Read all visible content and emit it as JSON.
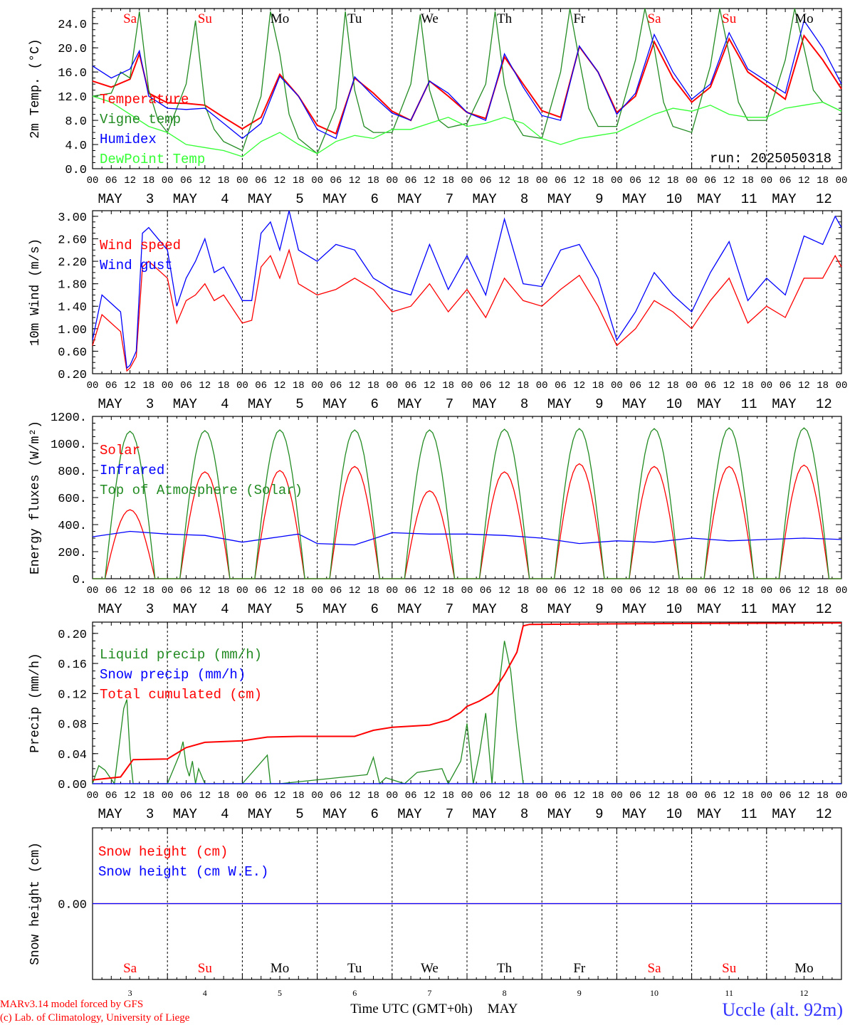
{
  "chart_data": [
    {
      "type": "line",
      "ylabel": "2m Temp. (°C)",
      "ylim": [
        0,
        26.5
      ],
      "yticks": [
        "0.0",
        "4.0",
        "8.0",
        "12.0",
        "16.0",
        "20.0",
        "24.0"
      ],
      "x_unit": "hours since 2025-05-03 00 UTC",
      "run_label": "run: 2025050318",
      "series": [
        {
          "name": "Temperature",
          "color": "#ff0000",
          "x": [
            0,
            6,
            12,
            15,
            18,
            24,
            30,
            36,
            42,
            48,
            54,
            60,
            66,
            72,
            78,
            84,
            90,
            96,
            102,
            108,
            114,
            120,
            126,
            132,
            138,
            144,
            150,
            156,
            162,
            168,
            174,
            180,
            186,
            192,
            198,
            204,
            210,
            216,
            222,
            228,
            234,
            240
          ],
          "y": [
            14.5,
            13.5,
            14.8,
            19.0,
            12.5,
            10.9,
            10.8,
            10.5,
            8.5,
            6.6,
            8.5,
            15.6,
            12.0,
            7.2,
            5.8,
            15.0,
            12.5,
            9.5,
            8.0,
            14.5,
            12.0,
            9.3,
            8.3,
            18.5,
            14.0,
            9.6,
            8.5,
            20.2,
            16.0,
            9.3,
            12.0,
            21.0,
            15.0,
            11.0,
            13.5,
            21.5,
            16.0,
            13.8,
            11.5,
            22.0,
            18.0,
            13.2
          ]
        },
        {
          "name": "Vigne temp",
          "color": "#228b22",
          "x": [
            0,
            6,
            9,
            12,
            15,
            18,
            21,
            24,
            30,
            33,
            36,
            39,
            42,
            48,
            54,
            57,
            60,
            63,
            66,
            72,
            78,
            81,
            84,
            87,
            90,
            96,
            102,
            105,
            108,
            111,
            114,
            120,
            126,
            129,
            132,
            135,
            138,
            144,
            150,
            153,
            156,
            159,
            162,
            168,
            174,
            177,
            180,
            183,
            186,
            192,
            198,
            201,
            204,
            207,
            210,
            216,
            222,
            225,
            228,
            231,
            234,
            240
          ],
          "y": [
            12.0,
            12.5,
            16.0,
            15.0,
            26.0,
            13.0,
            8.0,
            6.0,
            14.0,
            24.5,
            10.5,
            6.5,
            4.5,
            3.0,
            12.0,
            26.0,
            19.0,
            9.0,
            5.0,
            2.5,
            10.0,
            26.0,
            13.0,
            7.0,
            6.0,
            6.0,
            14.0,
            25.5,
            13.0,
            8.0,
            6.8,
            7.5,
            14.0,
            26.0,
            14.0,
            8.0,
            5.5,
            5.0,
            16.0,
            27.0,
            18.0,
            10.0,
            7.0,
            7.0,
            18.0,
            28.0,
            20.0,
            11.0,
            7.0,
            6.0,
            17.0,
            28.0,
            19.0,
            11.0,
            8.0,
            8.0,
            18.0,
            28.0,
            20.0,
            13.0,
            11.0,
            9.5
          ]
        },
        {
          "name": "Humidex",
          "color": "#0000ff",
          "x": [
            0,
            6,
            12,
            15,
            18,
            24,
            30,
            36,
            42,
            48,
            54,
            60,
            66,
            72,
            78,
            84,
            90,
            96,
            102,
            108,
            114,
            120,
            126,
            132,
            138,
            144,
            150,
            156,
            162,
            168,
            174,
            180,
            186,
            192,
            198,
            204,
            210,
            216,
            222,
            228,
            234,
            240
          ],
          "y": [
            17.0,
            15.0,
            16.5,
            19.5,
            12.0,
            10.0,
            9.8,
            10.0,
            7.5,
            5.0,
            7.5,
            15.3,
            12.0,
            6.5,
            5.0,
            15.2,
            12.0,
            9.2,
            8.0,
            14.5,
            12.5,
            9.3,
            8.0,
            19.0,
            13.5,
            8.8,
            8.0,
            20.3,
            16.0,
            9.0,
            12.5,
            22.2,
            16.0,
            11.5,
            14.0,
            22.5,
            16.5,
            14.5,
            12.5,
            24.5,
            20.0,
            14.0
          ]
        },
        {
          "name": "DewPoint Temp",
          "color": "#33ff33",
          "x": [
            0,
            6,
            12,
            18,
            24,
            30,
            36,
            42,
            48,
            54,
            60,
            66,
            72,
            78,
            84,
            90,
            96,
            102,
            108,
            114,
            120,
            126,
            132,
            138,
            144,
            150,
            156,
            162,
            168,
            174,
            180,
            186,
            192,
            198,
            204,
            210,
            216,
            222,
            228,
            234,
            240
          ],
          "y": [
            12.0,
            11.0,
            9.0,
            7.0,
            6.0,
            4.0,
            3.5,
            3.0,
            2.0,
            4.5,
            6.0,
            4.0,
            2.5,
            4.5,
            5.5,
            5.0,
            6.5,
            6.5,
            7.5,
            8.5,
            7.0,
            7.5,
            8.5,
            7.5,
            5.0,
            4.0,
            5.0,
            5.5,
            6.0,
            7.5,
            9.0,
            10.0,
            9.5,
            10.5,
            9.0,
            8.5,
            8.5,
            10.0,
            10.5,
            11.0,
            9.5
          ]
        }
      ]
    },
    {
      "type": "line",
      "ylabel": "10m Wind (m/s)",
      "ylim": [
        0.2,
        3.1
      ],
      "yticks": [
        "0.20",
        "0.60",
        "1.00",
        "1.40",
        "1.80",
        "2.20",
        "2.60",
        "3.00"
      ],
      "series": [
        {
          "name": "Wind speed",
          "color": "#ff0000",
          "x": [
            0,
            3,
            9,
            11,
            12,
            14,
            16,
            18,
            24,
            27,
            30,
            33,
            36,
            39,
            42,
            48,
            51,
            54,
            57,
            60,
            63,
            66,
            72,
            78,
            84,
            90,
            96,
            102,
            108,
            114,
            120,
            126,
            132,
            138,
            144,
            150,
            156,
            162,
            168,
            174,
            180,
            186,
            192,
            198,
            204,
            210,
            216,
            222,
            228,
            234,
            238,
            240
          ],
          "y": [
            0.7,
            1.25,
            0.95,
            0.25,
            0.3,
            0.5,
            2.1,
            2.2,
            1.9,
            1.1,
            1.5,
            1.6,
            1.8,
            1.5,
            1.6,
            1.1,
            1.15,
            2.1,
            2.3,
            1.9,
            2.4,
            1.8,
            1.6,
            1.7,
            1.9,
            1.7,
            1.3,
            1.4,
            1.8,
            1.3,
            1.7,
            1.2,
            1.9,
            1.5,
            1.4,
            1.7,
            1.95,
            1.4,
            0.7,
            1.0,
            1.5,
            1.3,
            1.0,
            1.5,
            1.9,
            1.1,
            1.4,
            1.2,
            1.9,
            1.9,
            2.3,
            2.1
          ]
        },
        {
          "name": "Wind gust",
          "color": "#0000ff",
          "x": [
            0,
            3,
            9,
            11,
            12,
            14,
            16,
            18,
            24,
            27,
            30,
            33,
            36,
            39,
            42,
            48,
            51,
            54,
            57,
            60,
            63,
            66,
            72,
            78,
            84,
            90,
            96,
            102,
            108,
            114,
            120,
            126,
            132,
            138,
            144,
            150,
            156,
            162,
            168,
            174,
            180,
            186,
            192,
            198,
            204,
            210,
            216,
            222,
            228,
            234,
            238,
            240
          ],
          "y": [
            0.8,
            1.6,
            1.3,
            0.3,
            0.35,
            0.6,
            2.7,
            2.8,
            2.4,
            1.4,
            1.9,
            2.2,
            2.6,
            2.0,
            2.1,
            1.5,
            1.5,
            2.7,
            2.9,
            2.4,
            3.1,
            2.4,
            2.2,
            2.5,
            2.4,
            1.9,
            1.7,
            1.6,
            2.5,
            1.7,
            2.3,
            1.6,
            2.95,
            1.8,
            1.75,
            2.4,
            2.5,
            1.9,
            0.8,
            1.3,
            2.0,
            1.6,
            1.3,
            2.0,
            2.55,
            1.5,
            1.9,
            1.6,
            2.65,
            2.5,
            3.0,
            2.8
          ]
        }
      ]
    },
    {
      "type": "line",
      "ylabel": "Energy fluxes (W/m²)",
      "ylim": [
        0,
        1200
      ],
      "yticks": [
        "0.",
        "200.",
        "400.",
        "600.",
        "800.",
        "1000.",
        "1200."
      ],
      "series": [
        {
          "name": "Solar",
          "color": "#ff0000",
          "peak_hour_utc": 12,
          "day_hours": 16,
          "daily_peaks": [
            510,
            790,
            800,
            830,
            650,
            790,
            850,
            830,
            830,
            840
          ]
        },
        {
          "name": "Infrared",
          "color": "#0000ff",
          "x": [
            0,
            12,
            24,
            36,
            48,
            60,
            66,
            72,
            84,
            96,
            108,
            120,
            132,
            144,
            156,
            168,
            180,
            192,
            204,
            216,
            228,
            240
          ],
          "y": [
            310,
            350,
            330,
            320,
            270,
            310,
            330,
            260,
            250,
            340,
            330,
            330,
            320,
            300,
            260,
            280,
            270,
            300,
            280,
            290,
            300,
            290
          ]
        },
        {
          "name": "Top of Atmosphere (Solar)",
          "color": "#228b22",
          "peak_hour_utc": 12,
          "day_hours": 16,
          "daily_peaks": [
            1090,
            1095,
            1100,
            1100,
            1100,
            1105,
            1110,
            1110,
            1115,
            1115
          ]
        }
      ]
    },
    {
      "type": "line",
      "ylabel": "Precip (mm/h)",
      "ylim": [
        0,
        0.215
      ],
      "yticks": [
        "0.00",
        "0.04",
        "0.08",
        "0.12",
        "0.16",
        "0.20"
      ],
      "series": [
        {
          "name": "Liquid precip (mm/h)",
          "color": "#228b22",
          "x": [
            0,
            2,
            4,
            7,
            10,
            11,
            12,
            13,
            15,
            24,
            26,
            28,
            29,
            30,
            31,
            32,
            33,
            34,
            36,
            40,
            48,
            56,
            57,
            58,
            60,
            88,
            90,
            92,
            94,
            100,
            104,
            112,
            114,
            118,
            120,
            122,
            124,
            126,
            128,
            130,
            132,
            134,
            136,
            138,
            140,
            240
          ],
          "y": [
            0.0,
            0.024,
            0.018,
            0.0,
            0.1,
            0.112,
            0.04,
            0.0,
            0.0,
            0.0,
            0.02,
            0.04,
            0.056,
            0.024,
            0.01,
            0.03,
            0.0,
            0.02,
            0.0,
            0.0,
            0.0,
            0.038,
            0.0,
            0.0,
            0.0,
            0.012,
            0.035,
            0.0,
            0.008,
            0.0,
            0.015,
            0.02,
            0.0,
            0.03,
            0.08,
            0.0,
            0.04,
            0.094,
            0.0,
            0.12,
            0.19,
            0.15,
            0.07,
            0.0,
            0.0,
            0.0
          ]
        },
        {
          "name": "Snow precip (mm/h)",
          "color": "#0000ff",
          "x": [
            0,
            240
          ],
          "y": [
            0.0,
            0.0
          ]
        },
        {
          "name": "Total cumulated (cm)",
          "color": "#ff0000",
          "x": [
            0,
            9,
            13,
            24,
            30,
            36,
            48,
            56,
            66,
            84,
            90,
            96,
            108,
            114,
            118,
            120,
            124,
            128,
            132,
            136,
            138,
            140,
            180,
            240
          ],
          "y": [
            0.005,
            0.009,
            0.032,
            0.033,
            0.048,
            0.055,
            0.057,
            0.062,
            0.063,
            0.063,
            0.071,
            0.075,
            0.078,
            0.085,
            0.095,
            0.103,
            0.11,
            0.12,
            0.145,
            0.175,
            0.21,
            0.212,
            0.213,
            0.214
          ]
        }
      ]
    },
    {
      "type": "line",
      "ylabel": "Snow height (cm)",
      "ylim": [
        -1,
        1
      ],
      "yticks": [
        "0.00"
      ],
      "series": [
        {
          "name": "Snow height (cm)",
          "color": "#ff0000",
          "x": [
            0,
            240
          ],
          "y": [
            0,
            0
          ]
        },
        {
          "name": "Snow height (cm W.E.)",
          "color": "#0000ff",
          "x": [
            0,
            240
          ],
          "y": [
            0,
            0
          ]
        }
      ]
    }
  ],
  "axis": {
    "hour_ticks": [
      "00",
      "06",
      "12",
      "18"
    ],
    "end_hour": "00",
    "month": "MAY",
    "days": [
      "3",
      "4",
      "5",
      "6",
      "7",
      "8",
      "9",
      "10",
      "11",
      "12"
    ],
    "weekdays": [
      "Sa",
      "Su",
      "Mo",
      "Tu",
      "We",
      "Th",
      "Fr",
      "Sa",
      "Su",
      "Mo"
    ],
    "weekday_colors": [
      "#ff0000",
      "#ff0000",
      "#000000",
      "#000000",
      "#000000",
      "#000000",
      "#000000",
      "#ff0000",
      "#ff0000",
      "#000000"
    ],
    "xlabel": "Time UTC (GMT+0h)",
    "xlabel_month": "MAY"
  },
  "footer": {
    "credit_line1": "MARv3.14 model forced by GFS",
    "credit_line2": "(c) Lab. of Climatology, University of Liege",
    "location": "Uccle (alt. 92m)"
  }
}
